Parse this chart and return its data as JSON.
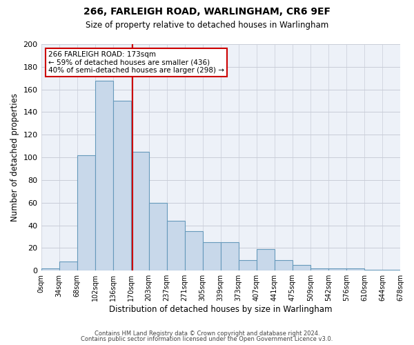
{
  "title1": "266, FARLEIGH ROAD, WARLINGHAM, CR6 9EF",
  "title2": "Size of property relative to detached houses in Warlingham",
  "xlabel": "Distribution of detached houses by size in Warlingham",
  "ylabel": "Number of detached properties",
  "footnote1": "Contains HM Land Registry data © Crown copyright and database right 2024.",
  "footnote2": "Contains public sector information licensed under the Open Government Licence v3.0.",
  "bin_labels": [
    "0sqm",
    "34sqm",
    "68sqm",
    "102sqm",
    "136sqm",
    "170sqm",
    "203sqm",
    "237sqm",
    "271sqm",
    "305sqm",
    "339sqm",
    "373sqm",
    "407sqm",
    "441sqm",
    "475sqm",
    "509sqm",
    "542sqm",
    "576sqm",
    "610sqm",
    "644sqm",
    "678sqm"
  ],
  "bar_values": [
    2,
    8,
    102,
    168,
    150,
    105,
    60,
    44,
    35,
    25,
    25,
    9,
    19,
    9,
    5,
    2,
    2,
    2,
    1,
    1
  ],
  "bar_color": "#c8d8ea",
  "bar_edge_color": "#6699bb",
  "grid_color": "#c8ccd8",
  "background_color": "#edf1f8",
  "annotation_text": "266 FARLEIGH ROAD: 173sqm\n← 59% of detached houses are smaller (436)\n40% of semi-detached houses are larger (298) →",
  "annotation_box_edge": "#cc0000",
  "property_line_x": 173,
  "bin_width": 34,
  "ylim": [
    0,
    200
  ],
  "yticks": [
    0,
    20,
    40,
    60,
    80,
    100,
    120,
    140,
    160,
    180,
    200
  ],
  "fig_width": 6.0,
  "fig_height": 5.0
}
